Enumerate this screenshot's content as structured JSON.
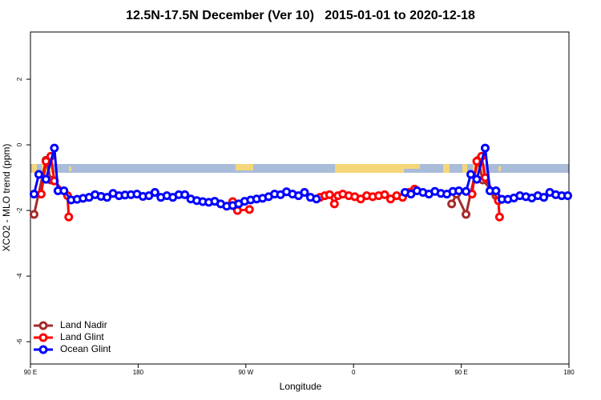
{
  "chart_data": {
    "type": "line",
    "title": "12.5N-17.5N December (Ver 10)   2015-01-01 to 2020-12-18",
    "xlabel": "Longitude",
    "ylabel": "XCO2 - MLO trend (ppm)",
    "xlim": [
      90,
      540
    ],
    "ylim": [
      -6.68,
      3.44
    ],
    "xticks": [
      {
        "value": 90,
        "label": "90 E"
      },
      180,
      {
        "value": 270,
        "label": "90 W"
      },
      {
        "value": 360,
        "label": "0"
      },
      {
        "value": 450,
        "label": "90 E"
      },
      {
        "value": 540,
        "label": "180"
      }
    ],
    "yticks": [
      2,
      0,
      -2,
      -4,
      -6
    ],
    "legend": "bottom-left",
    "series": [
      {
        "name": "Land Nadir",
        "color": "#a52a2a",
        "x": [
          93,
          103,
          107,
          null,
          442,
          446,
          454,
          464,
          468,
          479
        ],
        "values": [
          -2.12,
          -0.47,
          -1.07,
          null,
          -1.8,
          -1.5,
          -2.12,
          -0.47,
          -1.07,
          -1.55
        ]
      },
      {
        "name": "Land Glint",
        "color": "#ff0000",
        "x": [
          99,
          103,
          107,
          110,
          121,
          122,
          null,
          259,
          263,
          273,
          null,
          332,
          336,
          340,
          344,
          347,
          351,
          356,
          361,
          366,
          371,
          376,
          381,
          386,
          391,
          396,
          401,
          406,
          411,
          null,
          459,
          463,
          467,
          470,
          481,
          482
        ],
        "values": [
          -1.5,
          -0.5,
          -0.35,
          -1.1,
          -1.55,
          -2.2,
          null,
          -1.73,
          -2.0,
          -1.97,
          null,
          -1.6,
          -1.55,
          -1.52,
          -1.8,
          -1.55,
          -1.5,
          -1.55,
          -1.58,
          -1.65,
          -1.55,
          -1.58,
          -1.55,
          -1.52,
          -1.65,
          -1.55,
          -1.6,
          -1.45,
          -1.35,
          null,
          -1.5,
          -0.5,
          -0.35,
          -1.0,
          -1.7,
          -2.2
        ]
      },
      {
        "name": "Ocean Glint",
        "color": "#0000ff",
        "x": [
          93,
          97,
          103,
          110,
          113,
          118,
          124,
          129,
          134,
          139,
          144,
          149,
          154,
          159,
          164,
          169,
          174,
          179,
          184,
          189,
          194,
          199,
          204,
          209,
          214,
          219,
          224,
          229,
          234,
          239,
          244,
          249,
          254,
          259,
          264,
          269,
          274,
          279,
          284,
          289,
          294,
          299,
          304,
          309,
          314,
          319,
          324,
          329,
          null,
          403,
          408,
          413,
          418,
          423,
          428,
          433,
          438,
          443,
          448,
          454,
          458,
          463,
          470,
          474,
          479,
          484,
          489,
          494,
          499,
          504,
          509,
          514,
          519,
          524,
          529,
          534,
          539
        ],
        "values": [
          -1.5,
          -0.9,
          -1.05,
          -0.1,
          -1.4,
          -1.4,
          -1.68,
          -1.66,
          -1.63,
          -1.6,
          -1.52,
          -1.57,
          -1.6,
          -1.48,
          -1.55,
          -1.53,
          -1.52,
          -1.5,
          -1.57,
          -1.55,
          -1.45,
          -1.6,
          -1.55,
          -1.6,
          -1.52,
          -1.52,
          -1.65,
          -1.7,
          -1.73,
          -1.75,
          -1.72,
          -1.8,
          -1.87,
          -1.85,
          -1.8,
          -1.72,
          -1.68,
          -1.65,
          -1.63,
          -1.58,
          -1.5,
          -1.52,
          -1.43,
          -1.5,
          -1.55,
          -1.45,
          -1.6,
          -1.65,
          null,
          -1.45,
          -1.5,
          -1.4,
          -1.45,
          -1.5,
          -1.42,
          -1.48,
          -1.5,
          -1.42,
          -1.4,
          -1.42,
          -0.9,
          -1.05,
          -0.1,
          -1.4,
          -1.4,
          -1.66,
          -1.66,
          -1.62,
          -1.55,
          -1.58,
          -1.62,
          -1.55,
          -1.6,
          -1.45,
          -1.52,
          -1.55,
          -1.55
        ]
      }
    ]
  }
}
